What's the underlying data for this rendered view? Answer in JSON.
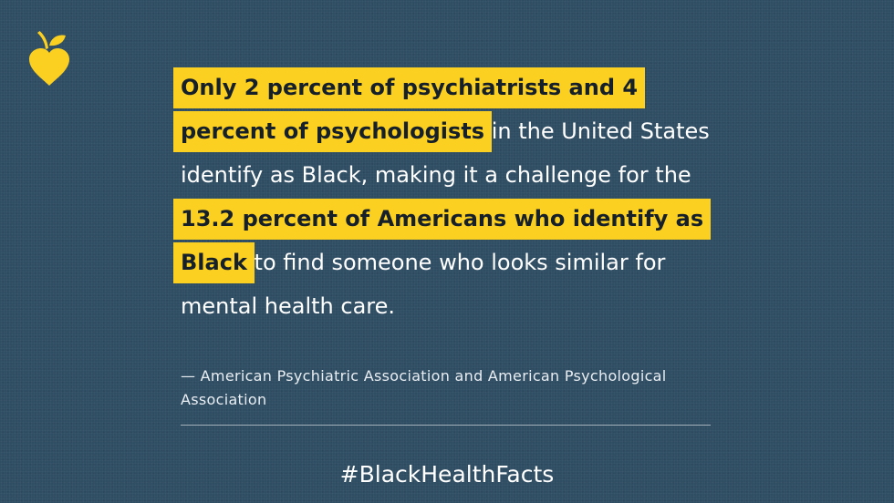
{
  "brand": {
    "logo_icon": "apple-heart-icon",
    "accent_color": "#fcd020",
    "background_color": "#2f4d63"
  },
  "quote": {
    "highlight_1": "Only 2 percent of psychiatrists and 4 percent of psychologists",
    "text_1": " in the United States identify as Black, making it a challenge for the ",
    "highlight_2": "13.2 percent of Americans who identify as Black",
    "text_2": " to find someone who looks similar for mental health care."
  },
  "attribution": "— American Psychiatric Association and American Psychological Association",
  "hashtag": "#BlackHealthFacts"
}
